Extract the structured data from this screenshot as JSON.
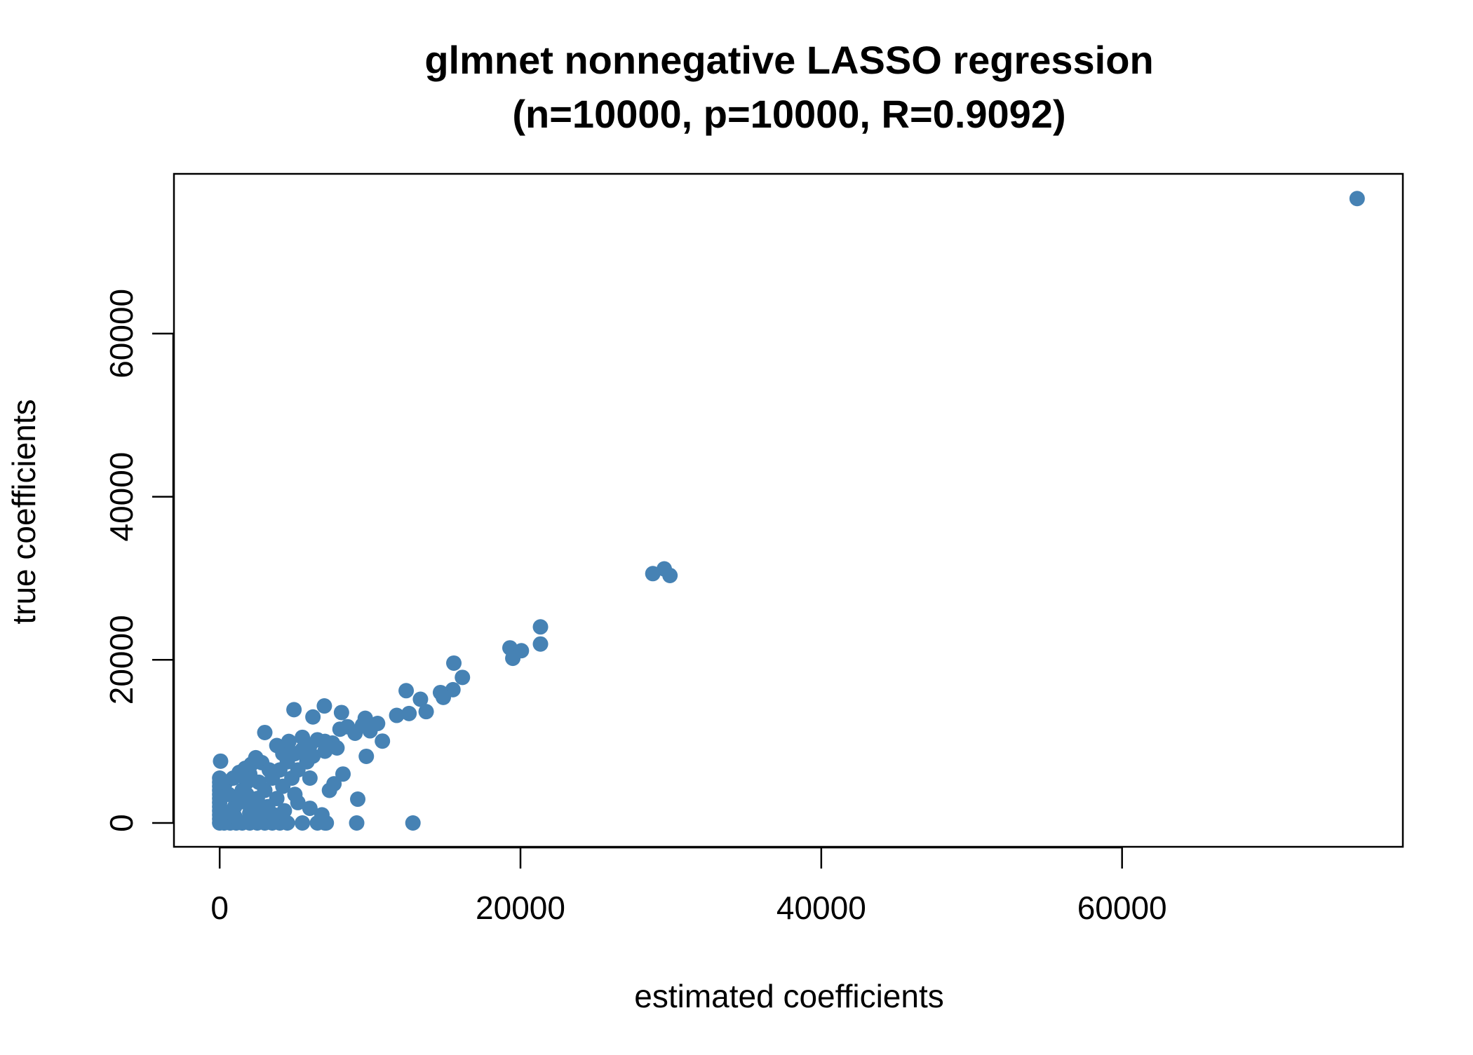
{
  "chart_data": {
    "type": "scatter",
    "title": "glmnet nonnegative LASSO regression",
    "subtitle": "(n=10000, p=10000, R=0.9092)",
    "x_label": "estimated coefficients",
    "y_label": "true coefficients",
    "color": "#4682b4",
    "xlim": [
      -3040,
      78670
    ],
    "ylim": [
      -2920,
      79580
    ],
    "xticks": [
      0,
      20000,
      40000,
      60000
    ],
    "yticks": [
      0,
      20000,
      40000,
      60000
    ],
    "x": [
      75630,
      28800,
      29560,
      29940,
      19300,
      20060,
      19490,
      21330,
      21330,
      15570,
      16140,
      15510,
      14680,
      14870,
      12400,
      13350,
      13730,
      12590,
      11770,
      9680,
      10820,
      9750,
      9180,
      12850,
      9110,
      7090,
      4940,
      6960,
      8100,
      3000,
      60,
      0,
      300,
      700,
      1100,
      1500,
      2000,
      2500,
      3000,
      3500,
      4000,
      4500,
      5500,
      6500,
      7000,
      0,
      0,
      0,
      0,
      0,
      0,
      0,
      0,
      0,
      0,
      0,
      500,
      800,
      1000,
      1200,
      1500,
      1800,
      2000,
      600,
      400,
      900,
      1300,
      1700,
      2100,
      2400,
      2800,
      2500,
      3000,
      3500,
      4000,
      4500,
      5000,
      5500,
      6000,
      6500,
      7000,
      7500,
      8000,
      8500,
      9000,
      9500,
      10000,
      10500,
      3200,
      3800,
      4200,
      4800,
      5200,
      5800,
      6200,
      7000,
      7800,
      8200,
      7600,
      7300,
      6000,
      5000,
      4300,
      3600,
      2800,
      2200,
      1800,
      2600,
      3300,
      4200,
      3800,
      4600,
      5500,
      6200,
      5200,
      6000,
      6800,
      2000,
      1000,
      1600
    ],
    "values": [
      76550,
      30570,
      31150,
      30340,
      21470,
      21120,
      20190,
      24040,
      21940,
      19600,
      17850,
      16340,
      15990,
      15400,
      16220,
      15170,
      13650,
      13420,
      13190,
      12840,
      10040,
      8170,
      2920,
      0,
      0,
      0,
      13890,
      14350,
      13540,
      11090,
      7580,
      0,
      0,
      0,
      0,
      0,
      0,
      0,
      0,
      0,
      0,
      0,
      0,
      0,
      0,
      500,
      1000,
      1500,
      2000,
      2500,
      3000,
      3500,
      4000,
      4500,
      5000,
      5500,
      600,
      1200,
      2000,
      3000,
      4000,
      5000,
      6000,
      3500,
      5000,
      5500,
      6200,
      6700,
      7200,
      8000,
      7400,
      3000,
      4000,
      5500,
      6500,
      7500,
      8500,
      9000,
      9500,
      10200,
      10000,
      9800,
      11500,
      11800,
      11000,
      12000,
      11300,
      12200,
      2000,
      3000,
      4500,
      5500,
      6500,
      7500,
      8200,
      8800,
      9200,
      6000,
      4800,
      4000,
      5500,
      3500,
      1500,
      1000,
      1500,
      2500,
      3500,
      5000,
      6500,
      8500,
      9500,
      10000,
      10500,
      13000,
      2500,
      1800,
      1000,
      1200,
      800,
      2600
    ]
  }
}
